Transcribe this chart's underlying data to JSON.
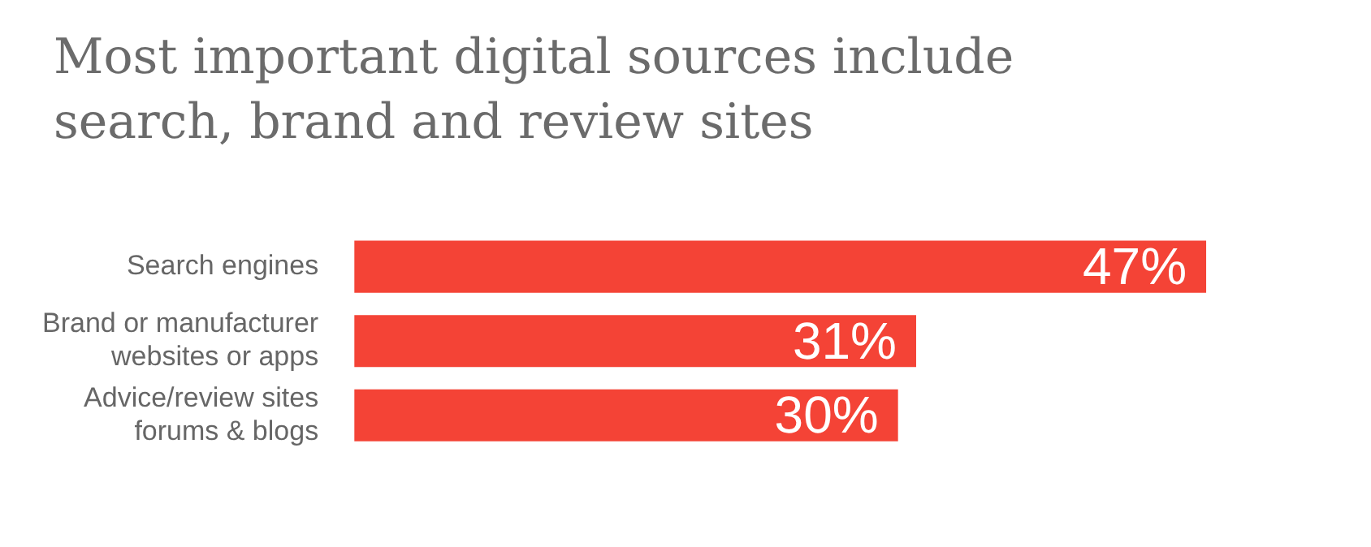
{
  "chart_data": {
    "type": "bar",
    "orientation": "horizontal",
    "title": "Most important digital sources include search, brand and review sites",
    "categories": [
      "Search engines",
      "Brand or manufacturer websites or apps",
      "Advice/review sites forums & blogs"
    ],
    "values": [
      47,
      31,
      30
    ],
    "value_labels": [
      "47%",
      "31%",
      "30%"
    ],
    "color": "#f44336"
  }
}
